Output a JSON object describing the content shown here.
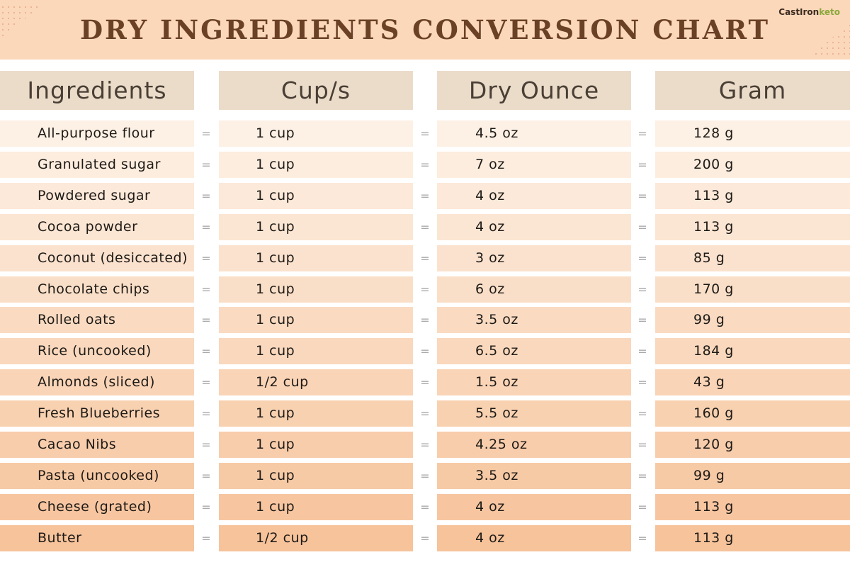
{
  "title": "DRY INGREDIENTS CONVERSION CHART",
  "logo": {
    "part1": "CastIron",
    "part2": "keto"
  },
  "headers": [
    "Ingredients",
    "Cup/s",
    "Dry Ounce",
    "Gram"
  ],
  "equals": "=",
  "rows": [
    [
      "All-purpose flour",
      "1 cup",
      "4.5 oz",
      "128 g"
    ],
    [
      "Granulated sugar",
      "1 cup",
      "7 oz",
      "200 g"
    ],
    [
      "Powdered sugar",
      "1 cup",
      "4 oz",
      "113 g"
    ],
    [
      "Cocoa powder",
      "1 cup",
      "4 oz",
      "113 g"
    ],
    [
      "Coconut (desiccated)",
      "1 cup",
      "3 oz",
      "85 g"
    ],
    [
      "Chocolate chips",
      "1 cup",
      "6 oz",
      "170 g"
    ],
    [
      "Rolled oats",
      "1 cup",
      "3.5 oz",
      "99 g"
    ],
    [
      "Rice (uncooked)",
      "1 cup",
      "6.5 oz",
      "184 g"
    ],
    [
      "Almonds (sliced)",
      "1/2 cup",
      "1.5 oz",
      "43 g"
    ],
    [
      "Fresh Blueberries",
      "1 cup",
      "5.5 oz",
      "160 g"
    ],
    [
      "Cacao Nibs",
      "1 cup",
      "4.25 oz",
      "120 g"
    ],
    [
      "Pasta (uncooked)",
      "1 cup",
      "3.5 oz",
      "99 g"
    ],
    [
      "Cheese (grated)",
      "1 cup",
      "4 oz",
      "113 g"
    ],
    [
      "Butter",
      "1/2 cup",
      "4 oz",
      "113 g"
    ]
  ],
  "colors": {
    "title": "#6b4126",
    "header_bg": "#ebdcca",
    "row_light": "#fdf0e4",
    "row_dark": "#f6c39b",
    "band": "#fcd8bb"
  }
}
